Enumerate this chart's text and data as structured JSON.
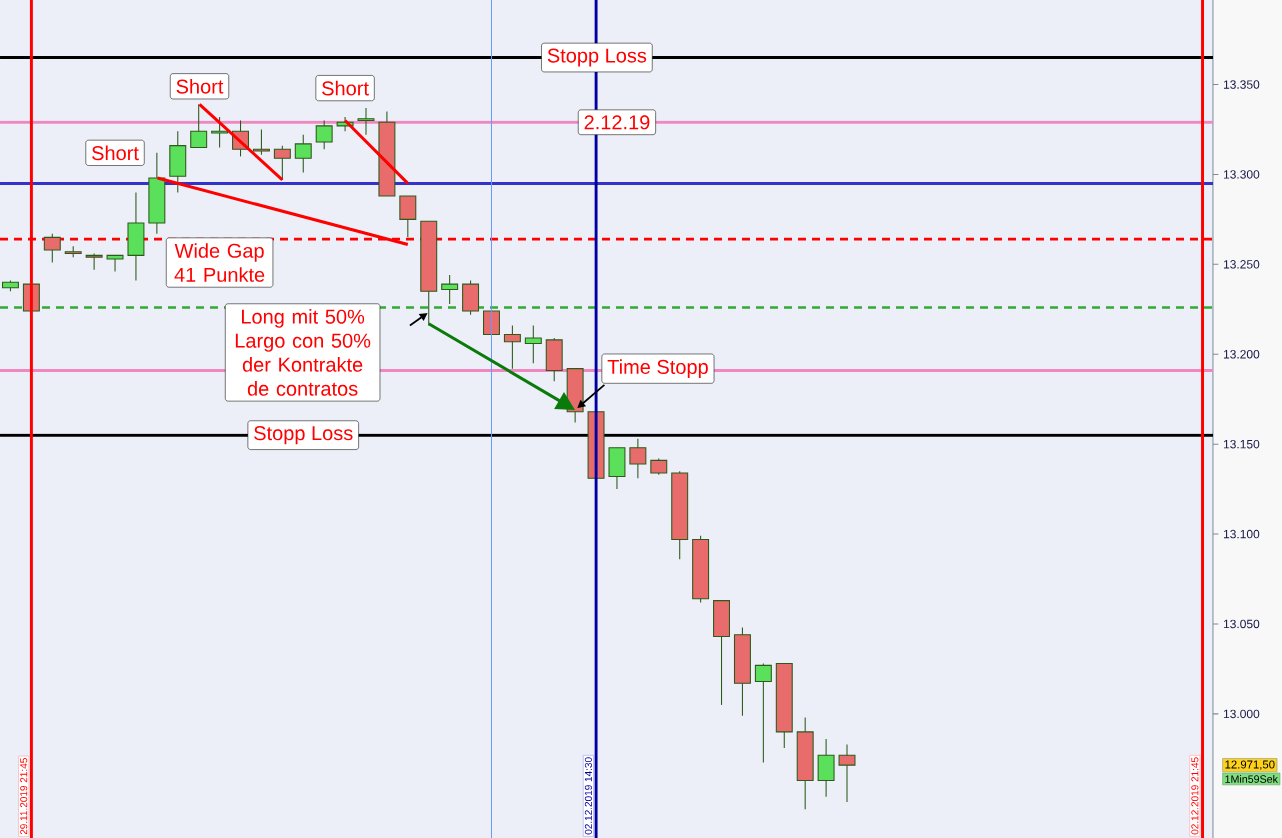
{
  "chart_data": {
    "type": "candlestick",
    "categories": [
      null,
      null,
      null,
      null,
      null,
      null,
      null,
      null,
      null,
      null,
      null,
      null,
      null,
      null,
      null,
      null,
      null,
      null,
      null,
      null,
      null,
      null,
      null,
      null,
      null,
      null,
      null,
      null,
      null,
      null,
      null,
      null,
      null,
      null,
      null,
      null,
      null,
      null,
      null,
      null,
      null,
      null,
      null,
      null,
      null,
      null,
      null,
      null,
      null,
      null,
      null,
      null,
      null,
      null,
      null,
      null,
      null,
      null
    ],
    "ohlc": [
      [
        13237,
        13241,
        13235,
        13240
      ],
      [
        13239,
        13239,
        13224,
        13224
      ],
      [
        13265,
        13267,
        13251,
        13258
      ],
      [
        13257,
        13260,
        13254,
        13256
      ],
      [
        13255,
        13256,
        13247,
        13254
      ],
      [
        13253,
        13255,
        13246,
        13255
      ],
      [
        13255,
        13290,
        13241,
        13273
      ],
      [
        13273,
        13312,
        13267,
        13298
      ],
      [
        13299,
        13324,
        13290,
        13316
      ],
      [
        13315,
        13339,
        13315,
        13324
      ],
      [
        13323,
        13332,
        13315,
        13324
      ],
      [
        13324,
        13330,
        13310,
        13314
      ],
      [
        13314,
        13325,
        13311,
        13313
      ],
      [
        13314,
        13316,
        13297,
        13309
      ],
      [
        13309,
        13322,
        13301,
        13317
      ],
      [
        13318,
        13330,
        13314,
        13327
      ],
      [
        13327,
        13332,
        13324,
        13329
      ],
      [
        13330,
        13337,
        13322,
        13331
      ],
      [
        13329,
        13335,
        13288,
        13288
      ],
      [
        13288,
        13288,
        13265,
        13275
      ],
      [
        13274,
        13274,
        13216,
        13235
      ],
      [
        13236,
        13244,
        13228,
        13239
      ],
      [
        13239,
        13241,
        13222,
        13224
      ],
      [
        13224,
        13224,
        13211,
        13211
      ],
      [
        13211,
        13216,
        13192,
        13207
      ],
      [
        13206,
        13216,
        13195,
        13209
      ],
      [
        13208,
        13209,
        13185,
        13191
      ],
      [
        13192,
        13192,
        13162,
        13168
      ],
      [
        13168,
        13168,
        13131,
        13131
      ],
      [
        13132,
        13148,
        13125,
        13148
      ],
      [
        13148,
        13153,
        13131,
        13139
      ],
      [
        13141,
        13142,
        13133,
        13134
      ],
      [
        13134,
        13135,
        13086,
        13097
      ],
      [
        13097,
        13099,
        13062,
        13064
      ],
      [
        13063,
        13063,
        13005,
        13043
      ],
      [
        13044,
        13048,
        12999,
        13017
      ],
      [
        13018,
        13028,
        12973,
        13027
      ],
      [
        13028,
        13028,
        12981,
        12990
      ],
      [
        12990,
        12998,
        12947,
        12963
      ],
      [
        12963,
        12986,
        12954,
        12977
      ],
      [
        12977,
        12983,
        12951,
        12971.5
      ],
      null,
      null,
      null,
      null,
      null,
      null,
      null,
      null,
      null,
      null,
      null,
      null,
      null,
      null,
      null,
      null,
      null
    ],
    "colors": [
      "#5ae05a",
      "#e86c6c",
      "#e86c6c",
      "#e86c6c",
      "#e86c6c",
      "#5ae05a",
      "#5ae05a",
      "#5ae05a",
      "#5ae05a",
      "#5ae05a",
      "#5ae05a",
      "#e86c6c",
      "#e86c6c",
      "#e86c6c",
      "#5ae05a",
      "#5ae05a",
      "#5ae05a",
      "#5ae05a",
      "#e86c6c",
      "#e86c6c",
      "#e86c6c",
      "#5ae05a",
      "#e86c6c",
      "#e86c6c",
      "#e86c6c",
      "#5ae05a",
      "#e86c6c",
      "#e86c6c",
      "#e86c6c",
      "#5ae05a",
      "#e86c6c",
      "#e86c6c",
      "#e86c6c",
      "#e86c6c",
      "#e86c6c",
      "#e86c6c",
      "#5ae05a",
      "#e86c6c",
      "#e86c6c",
      "#5ae05a",
      "#e86c6c",
      null,
      null,
      null,
      null,
      null,
      null,
      null,
      null,
      null,
      null,
      null,
      null,
      null,
      null,
      null,
      null,
      null
    ],
    "ylim": [
      12931,
      13397
    ],
    "yticks": [
      {
        "value": 13000,
        "label": "13.000"
      },
      {
        "value": 13050,
        "label": "13.050"
      },
      {
        "value": 13100,
        "label": "13.100"
      },
      {
        "value": 13150,
        "label": "13.150"
      },
      {
        "value": 13200,
        "label": "13.200"
      },
      {
        "value": 13250,
        "label": "13.250"
      },
      {
        "value": 13300,
        "label": "13.300"
      },
      {
        "value": 13350,
        "label": "13.350"
      }
    ],
    "tick_labels": "y",
    "ref_lines": [
      {
        "axis": "y",
        "value": 13365,
        "label": "Stopp Loss",
        "color": "#000000"
      },
      {
        "axis": "y",
        "value": 13329,
        "color": "#f088c0"
      },
      {
        "axis": "y",
        "value": 13295,
        "color": "#3333cc"
      },
      {
        "axis": "y",
        "value": 13264,
        "color": "#ff0000",
        "line_style": "dashed"
      },
      {
        "axis": "y",
        "value": 13226,
        "color": "#33aa33",
        "line_style": "dashed"
      },
      {
        "axis": "y",
        "value": 13191,
        "color": "#f088c0"
      },
      {
        "axis": "y",
        "value": 13155,
        "label": "Stopp Loss",
        "color": "#000000"
      }
    ],
    "annotations": [
      "Short",
      {
        "text": "Short",
        "y": 13339
      },
      {
        "text": "Short",
        "y": 13330
      },
      "2.12.19",
      "Wide Gap 41 Punkte",
      "Long mit 50% Largo con 50% der Kontrakte de contratos",
      "Time Stopp",
      "12.971,50",
      "1Min59Sek",
      "29.11.2019 21:45",
      "02.12.2019 14:30",
      "02.12.2019 21:45"
    ]
  }
}
